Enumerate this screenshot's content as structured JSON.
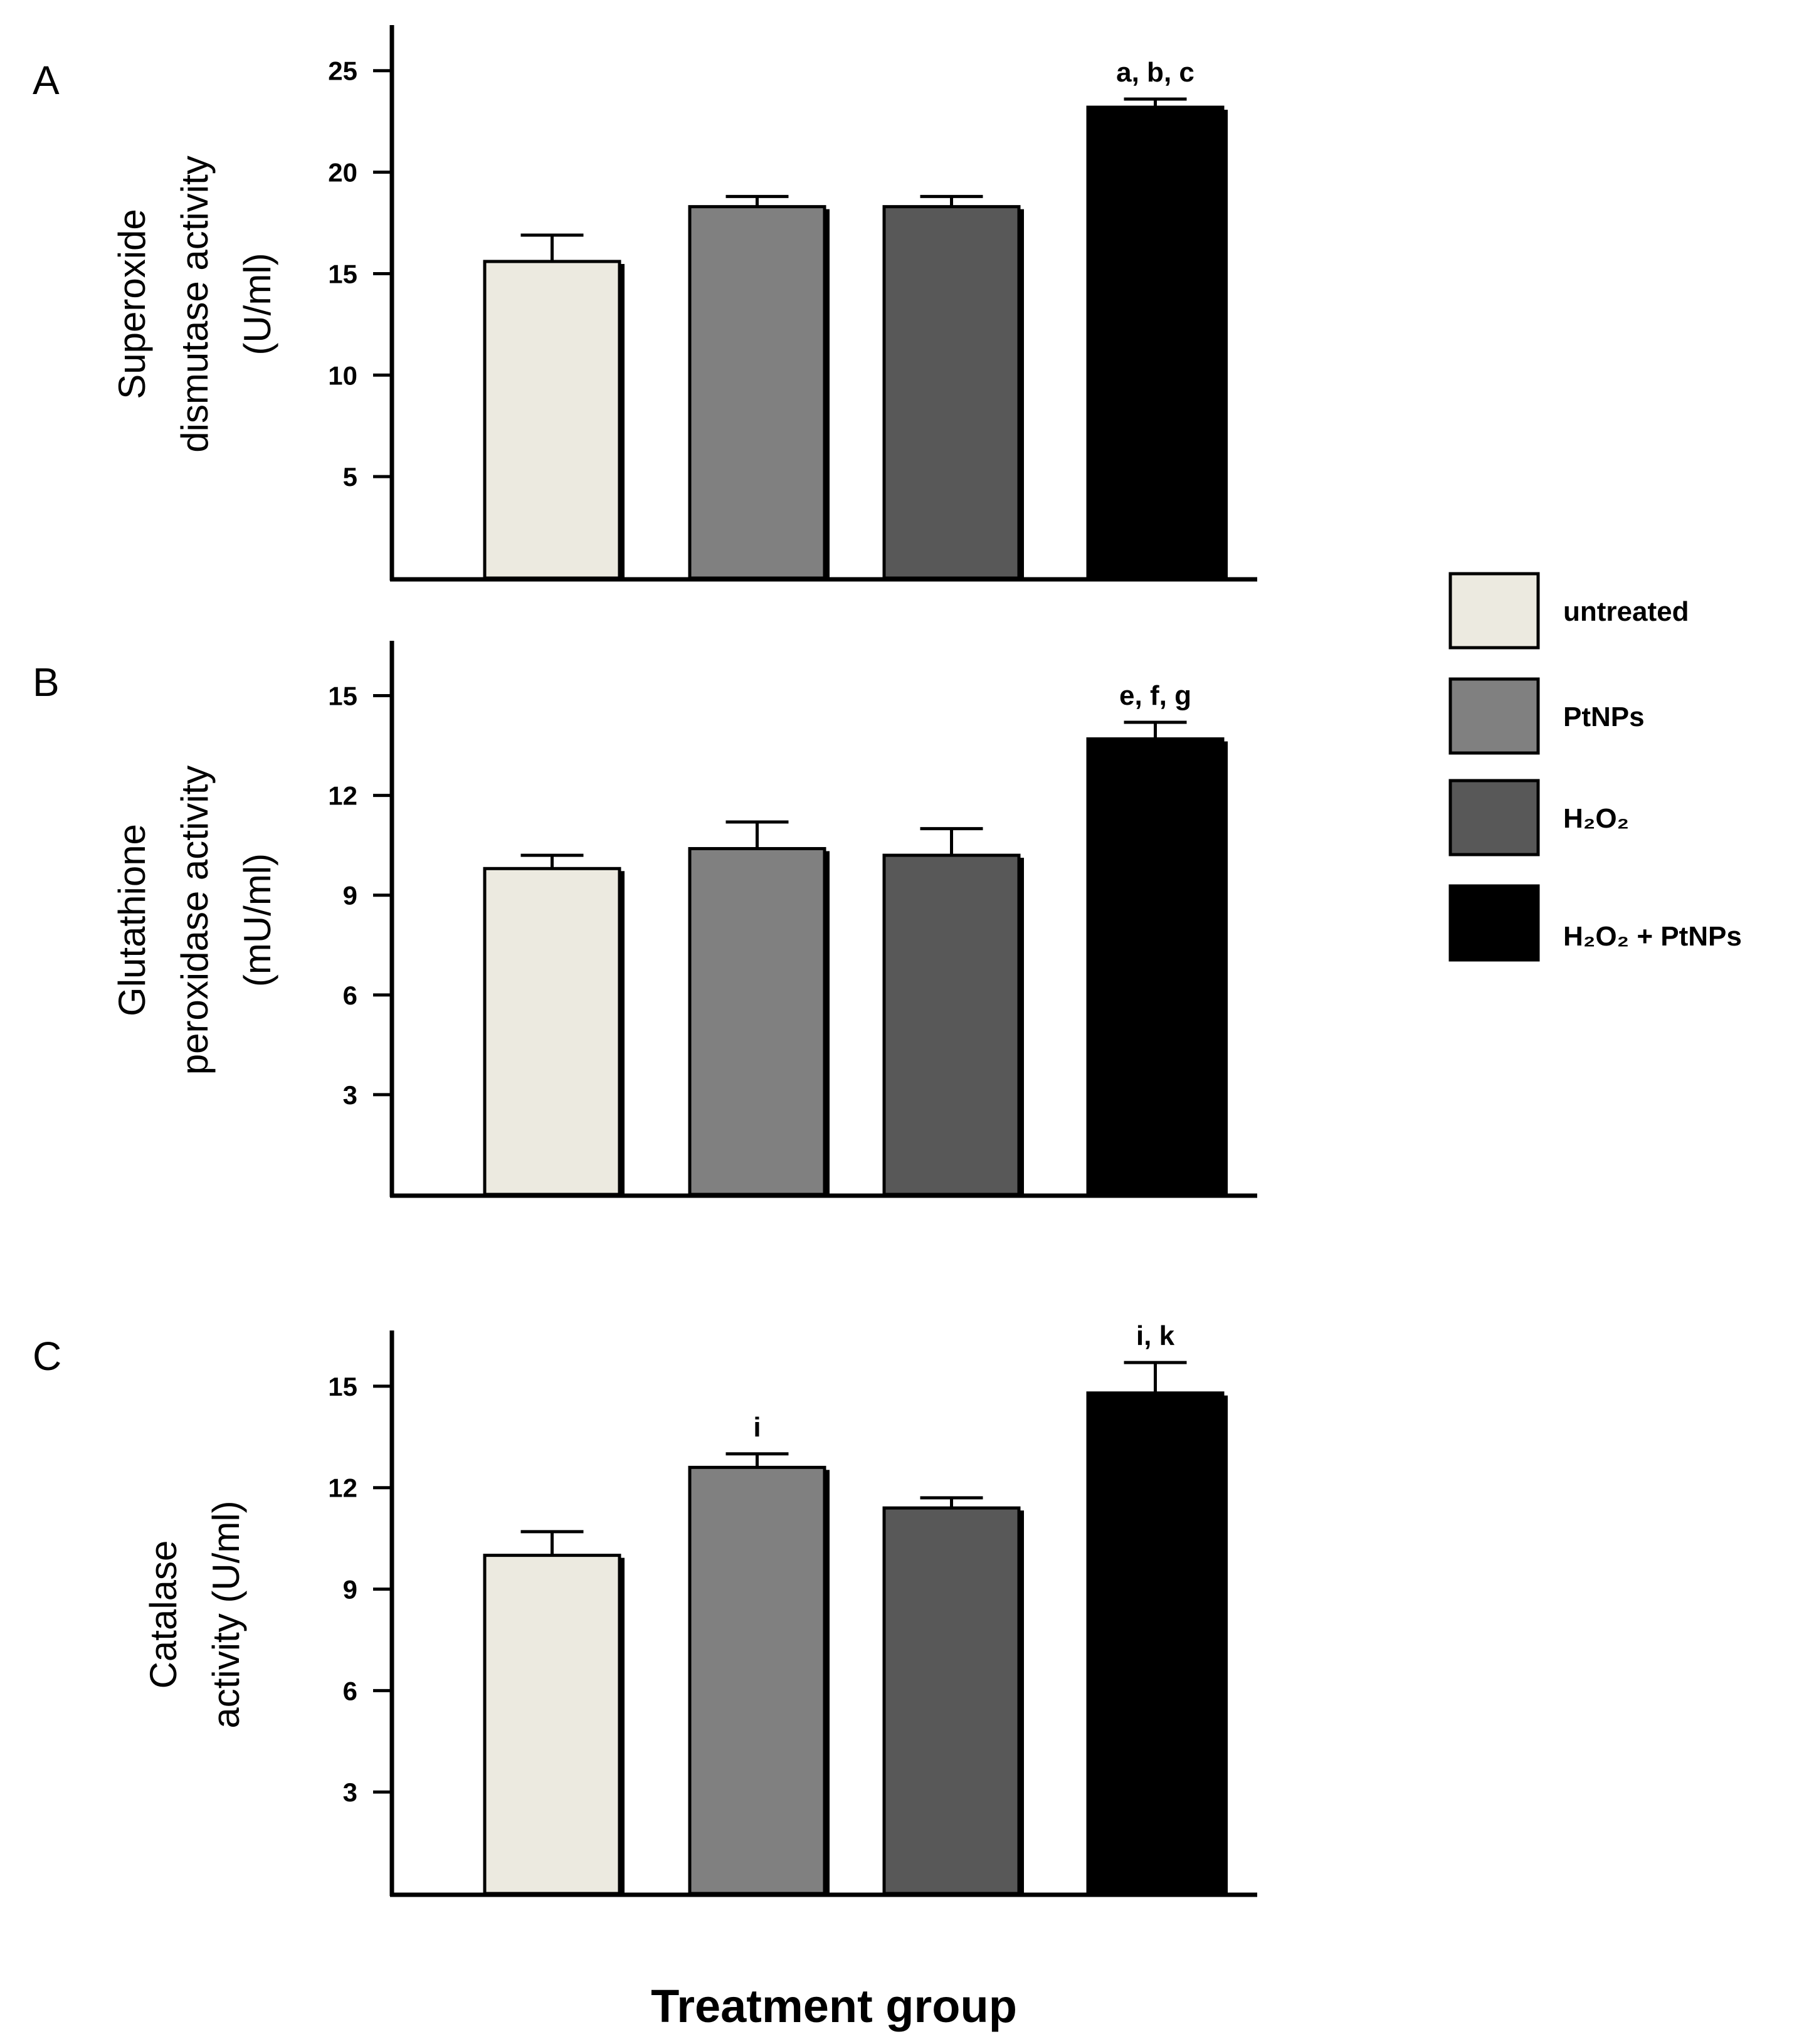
{
  "legend": [
    {
      "label": "untreated",
      "color": "#eceae0"
    },
    {
      "label": "PtNPs",
      "color": "#808080"
    },
    {
      "label": "H₂O₂",
      "color": "#585858"
    },
    {
      "label": "H₂O₂ + PtNPs",
      "color": "#000000"
    }
  ],
  "x_axis_title": "Treatment group",
  "chart_data": [
    {
      "type": "bar",
      "panel": "A",
      "ylabel_lines": [
        "Superoxide",
        "dismutase activity",
        "(U/ml)"
      ],
      "categories": [
        "untreated",
        "PtNPs",
        "H₂O₂",
        "H₂O₂ + PtNPs"
      ],
      "values": [
        15.6,
        18.3,
        18.3,
        23.2
      ],
      "errors": [
        1.3,
        0.5,
        0.5,
        0.4
      ],
      "annotations": [
        "",
        "",
        "",
        "a, b, c"
      ],
      "yticks": [
        5,
        10,
        15,
        20,
        25
      ],
      "ylim": [
        0,
        27
      ],
      "xlabel": "",
      "ylabel": "Superoxide dismutase activity (U/ml)"
    },
    {
      "type": "bar",
      "panel": "B",
      "ylabel_lines": [
        "Glutathione",
        "peroxidase activity",
        "(mU/ml)"
      ],
      "categories": [
        "untreated",
        "PtNPs",
        "H₂O₂",
        "H₂O₂ + PtNPs"
      ],
      "values": [
        9.8,
        10.4,
        10.2,
        13.7
      ],
      "errors": [
        0.4,
        0.8,
        0.8,
        0.5
      ],
      "annotations": [
        "",
        "",
        "",
        "e, f, g"
      ],
      "yticks": [
        3,
        6,
        9,
        12,
        15
      ],
      "ylim": [
        0,
        16.5
      ],
      "xlabel": "",
      "ylabel": "Glutathione peroxidase activity (mU/ml)"
    },
    {
      "type": "bar",
      "panel": "C",
      "ylabel_lines": [
        "Catalase",
        "activity (U/ml)"
      ],
      "categories": [
        "untreated",
        "PtNPs",
        "H₂O₂",
        "H₂O₂ + PtNPs"
      ],
      "values": [
        10.0,
        12.6,
        11.4,
        14.8
      ],
      "errors": [
        0.7,
        0.4,
        0.3,
        0.9
      ],
      "annotations": [
        "",
        "i",
        "",
        "i, k"
      ],
      "yticks": [
        3,
        6,
        9,
        12,
        15
      ],
      "ylim": [
        0,
        16.5
      ],
      "xlabel": "",
      "ylabel": "Catalase activity (U/ml)"
    }
  ]
}
